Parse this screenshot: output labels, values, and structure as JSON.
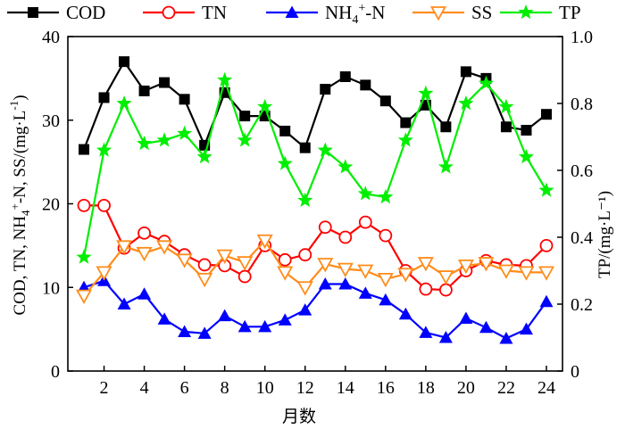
{
  "chart_data": {
    "type": "line",
    "xlabel": "月数",
    "ylabel_left": "COD, TN, NH4+-N, SS/(mg·L⁻¹)",
    "ylabel_right": "TP/(mg·L⁻¹)",
    "x": [
      1,
      2,
      3,
      4,
      5,
      6,
      7,
      8,
      9,
      10,
      11,
      12,
      13,
      14,
      15,
      16,
      17,
      18,
      19,
      20,
      21,
      22,
      23,
      24
    ],
    "x_ticks": [
      2,
      4,
      6,
      8,
      10,
      12,
      14,
      16,
      18,
      20,
      22,
      24
    ],
    "x_tick_labels": [
      "2",
      "4",
      "6",
      "8",
      "10",
      "12",
      "14",
      "16",
      "18",
      "20",
      "22",
      "24"
    ],
    "xlim": [
      0.2,
      24.8
    ],
    "ylim_left": [
      0,
      40
    ],
    "y_left_ticks": [
      0,
      10,
      20,
      30,
      40
    ],
    "y_left_tick_labels": [
      "0",
      "10",
      "20",
      "30",
      "40"
    ],
    "ylim_right": [
      0,
      1.0
    ],
    "y_right_ticks": [
      0,
      0.2,
      0.4,
      0.6,
      0.8,
      1.0
    ],
    "y_right_tick_labels": [
      "0",
      "0.2",
      "0.4",
      "0.6",
      "0.8",
      "1.0"
    ],
    "legend_position": "top",
    "series": [
      {
        "name": "COD",
        "axis": "left",
        "color": "#000000",
        "marker": "square",
        "values": [
          26.5,
          32.7,
          37.0,
          33.5,
          34.5,
          32.5,
          27.0,
          33.3,
          30.5,
          30.5,
          28.7,
          26.7,
          33.7,
          35.2,
          34.2,
          32.3,
          29.7,
          31.8,
          29.2,
          35.8,
          35.0,
          29.2,
          28.8,
          30.7
        ]
      },
      {
        "name": "TN",
        "axis": "left",
        "color": "#ff0000",
        "marker": "circle",
        "values": [
          19.8,
          19.8,
          14.7,
          16.5,
          15.5,
          13.9,
          12.7,
          12.6,
          11.3,
          15.0,
          13.3,
          13.9,
          17.2,
          16.0,
          17.8,
          16.2,
          12.0,
          9.8,
          9.7,
          12.0,
          13.2,
          12.7,
          12.6,
          15.0
        ]
      },
      {
        "name": "NH4+-N",
        "axis": "left",
        "color": "#0000ff",
        "marker": "triangle-up",
        "values": [
          10.0,
          10.8,
          8.0,
          9.2,
          6.2,
          4.7,
          4.5,
          6.6,
          5.3,
          5.3,
          6.1,
          7.3,
          10.4,
          10.4,
          9.3,
          8.5,
          6.8,
          4.6,
          4.0,
          6.3,
          5.2,
          3.9,
          5.0,
          8.3
        ]
      },
      {
        "name": "SS",
        "axis": "left",
        "color": "#ff8c1a",
        "marker": "triangle-down",
        "values": [
          9.0,
          11.8,
          14.9,
          14.1,
          14.9,
          13.3,
          11.0,
          13.8,
          13.0,
          15.6,
          11.8,
          10.0,
          12.8,
          12.2,
          12.0,
          11.0,
          11.6,
          12.9,
          11.3,
          12.6,
          12.9,
          12.0,
          11.8,
          11.8
        ]
      },
      {
        "name": "TP",
        "axis": "right",
        "color": "#00ee00",
        "marker": "star",
        "values": [
          0.34,
          0.66,
          0.8,
          0.68,
          0.69,
          0.71,
          0.64,
          0.87,
          0.69,
          0.79,
          0.62,
          0.51,
          0.66,
          0.61,
          0.53,
          0.52,
          0.69,
          0.83,
          0.61,
          0.8,
          0.86,
          0.79,
          0.64,
          0.54
        ]
      }
    ]
  }
}
